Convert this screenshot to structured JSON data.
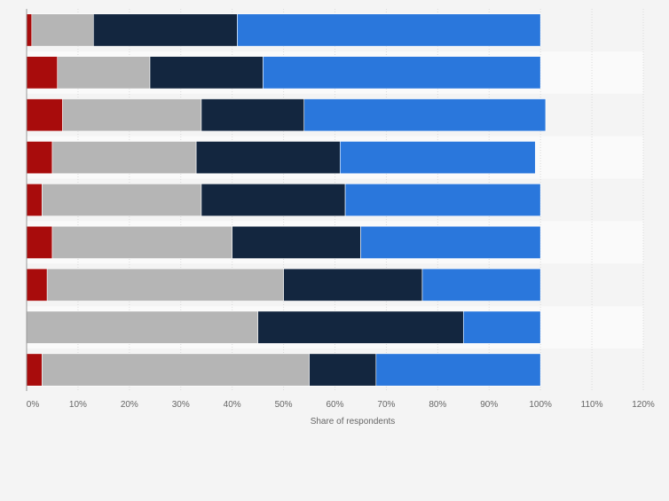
{
  "chart_data": {
    "type": "bar",
    "orientation": "horizontal",
    "stacked": true,
    "title": "",
    "xlabel": "Share of respondents",
    "ylabel": "",
    "xlim": [
      0,
      120
    ],
    "x_ticks": [
      "0%",
      "10%",
      "20%",
      "30%",
      "40%",
      "50%",
      "60%",
      "70%",
      "80%",
      "90%",
      "100%",
      "110%",
      "120%"
    ],
    "grid": true,
    "legend": "none",
    "categories": [
      "",
      "",
      "",
      "",
      "",
      "",
      "",
      "",
      ""
    ],
    "series": [
      {
        "color": "#a80c0c",
        "values": [
          1,
          6,
          7,
          5,
          3,
          5,
          4,
          0,
          3
        ]
      },
      {
        "color": "#b5b5b5",
        "values": [
          12,
          18,
          27,
          28,
          31,
          35,
          46,
          45,
          52
        ]
      },
      {
        "color": "#13263f",
        "values": [
          28,
          22,
          20,
          28,
          28,
          25,
          27,
          40,
          13
        ]
      },
      {
        "color": "#2a77dc",
        "values": [
          59,
          54,
          47,
          38,
          38,
          35,
          23,
          15,
          32
        ]
      }
    ]
  }
}
